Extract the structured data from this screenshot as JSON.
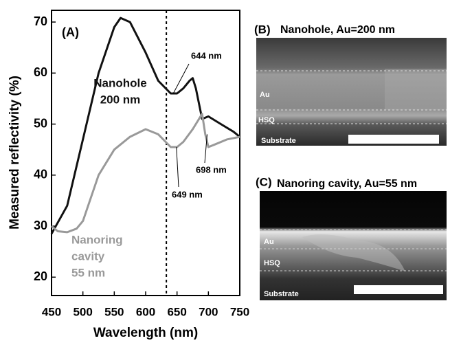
{
  "chart_data": {
    "type": "line",
    "panel_label": "(A)",
    "x_label": "Wavelength (nm)",
    "y_label": "Measured reflectivity (%)",
    "xlim": [
      450,
      750
    ],
    "xticks": [
      450,
      500,
      550,
      600,
      650,
      700,
      750
    ],
    "ylim": [
      16.4,
      72.3
    ],
    "yticks": [
      20,
      30,
      40,
      50,
      60,
      70
    ],
    "reference_line_x": 633,
    "series": [
      {
        "label": [
          "Nanohole",
          "200 nm"
        ],
        "color": "#111111",
        "x": [
          450,
          475,
          500,
          525,
          550,
          560,
          575,
          600,
          620,
          640,
          650,
          660,
          670,
          675,
          680,
          690,
          700,
          720,
          740,
          750
        ],
        "values": [
          28.5,
          34,
          47,
          60,
          69,
          70.8,
          70,
          64,
          58.5,
          56,
          56,
          57,
          58.5,
          59,
          57,
          51,
          51.5,
          50,
          48.5,
          47.5
        ]
      },
      {
        "label": [
          "Nanoring",
          "cavity",
          "55 nm"
        ],
        "color": "#999999",
        "x": [
          450,
          460,
          475,
          490,
          500,
          525,
          550,
          575,
          600,
          620,
          640,
          650,
          660,
          675,
          690,
          695,
          700,
          710,
          730,
          750
        ],
        "values": [
          30,
          29,
          28.8,
          29.5,
          31,
          40,
          45,
          47.5,
          49,
          48,
          45.5,
          45.5,
          46.5,
          49,
          52,
          48,
          45.5,
          46,
          47,
          47.5
        ]
      }
    ],
    "annotations": [
      {
        "text": "644 nm",
        "x": 644,
        "y": 56
      },
      {
        "text": "649 nm",
        "x": 649,
        "y": 45.5
      },
      {
        "text": "698 nm",
        "x": 698,
        "y": 48
      }
    ]
  },
  "panels": [
    {
      "label": "(B)",
      "title": "Nanohole, Au=200 nm",
      "layers": [
        "Au",
        "HSQ",
        "Substrate"
      ]
    },
    {
      "label": "(C)",
      "title": "Nanoring cavity, Au=55 nm",
      "layers": [
        "Au",
        "HSQ",
        "Substrate"
      ]
    }
  ]
}
